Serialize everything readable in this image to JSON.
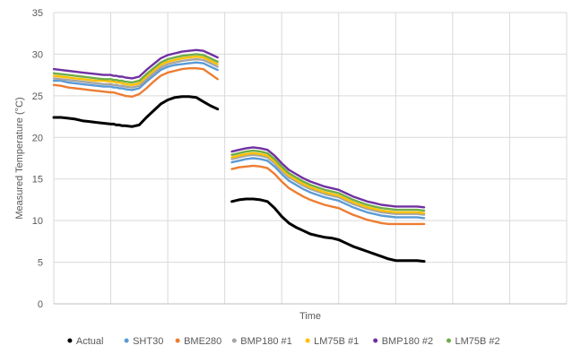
{
  "chart_data": {
    "type": "line",
    "title": "",
    "xlabel": "Time",
    "ylabel": "Measured Temperature (°C)",
    "ylim": [
      0,
      35
    ],
    "yticks": [
      0,
      5,
      10,
      15,
      20,
      25,
      30,
      35
    ],
    "grid": "vertical and horizontal",
    "legend_position": "bottom",
    "x": [
      0,
      5,
      10,
      15,
      20,
      25,
      30,
      35,
      40,
      42,
      44,
      46,
      48,
      50,
      55,
      60,
      65,
      70,
      75,
      80,
      85,
      90,
      95,
      100,
      105,
      110,
      115,
      120,
      125,
      130,
      135,
      140,
      145,
      150,
      155,
      160,
      165,
      170,
      175,
      180,
      185,
      190,
      195,
      200,
      205,
      210,
      215,
      220,
      225,
      230,
      235,
      240,
      245,
      250,
      255,
      260,
      265,
      270,
      275,
      280,
      285,
      290,
      295,
      300,
      305,
      310,
      315,
      320,
      325,
      330,
      335,
      340,
      345,
      350,
      355,
      360
    ],
    "series": [
      {
        "name": "Actual",
        "color": "#000000",
        "values": [
          22.4,
          22.4,
          22.3,
          22.2,
          22.0,
          21.9,
          21.8,
          21.7,
          21.6,
          21.6,
          21.5,
          21.5,
          21.4,
          21.4,
          21.3,
          21.5,
          22.4,
          23.2,
          24.0,
          24.5,
          24.8,
          24.9,
          24.9,
          24.8,
          24.3,
          23.8,
          23.4,
          null,
          12.3,
          12.5,
          12.6,
          12.6,
          12.5,
          12.3,
          11.5,
          10.5,
          9.7,
          9.2,
          8.8,
          8.4,
          8.2,
          8.0,
          7.9,
          7.7,
          7.3,
          6.9,
          6.6,
          6.3,
          6.0,
          5.7,
          5.4,
          5.2,
          5.2,
          5.2,
          5.2,
          5.1,
          null,
          null,
          null,
          null,
          null,
          null,
          null,
          null,
          null,
          null,
          null,
          null,
          null,
          null,
          null,
          null,
          null,
          null,
          null,
          null
        ]
      },
      {
        "name": "SHT30",
        "color": "#5B9BD5",
        "values": [
          26.8,
          26.8,
          26.6,
          26.5,
          26.4,
          26.3,
          26.2,
          26.1,
          26.1,
          26.0,
          26.0,
          25.9,
          25.9,
          25.8,
          25.7,
          25.9,
          26.7,
          27.4,
          28.1,
          28.5,
          28.7,
          28.8,
          28.9,
          29.0,
          28.9,
          28.5,
          28.1,
          null,
          17.0,
          17.2,
          17.4,
          17.5,
          17.4,
          17.2,
          16.5,
          15.6,
          14.8,
          14.3,
          13.8,
          13.4,
          13.1,
          12.8,
          12.6,
          12.4,
          12.0,
          11.6,
          11.3,
          11.0,
          10.8,
          10.6,
          10.5,
          10.4,
          10.4,
          10.4,
          10.4,
          10.3,
          null,
          null,
          null,
          null,
          null,
          null,
          null,
          null,
          null,
          null,
          null,
          null,
          null,
          null,
          null,
          null,
          null,
          null,
          null,
          null
        ]
      },
      {
        "name": "BME280",
        "color": "#ED7D31",
        "values": [
          26.3,
          26.2,
          26.0,
          25.9,
          25.8,
          25.7,
          25.6,
          25.5,
          25.4,
          25.4,
          25.3,
          25.2,
          25.1,
          25.0,
          24.9,
          25.2,
          25.9,
          26.7,
          27.4,
          27.8,
          28.0,
          28.2,
          28.3,
          28.3,
          28.2,
          27.6,
          27.0,
          null,
          16.2,
          16.4,
          16.5,
          16.6,
          16.5,
          16.3,
          15.6,
          14.7,
          13.9,
          13.4,
          12.9,
          12.5,
          12.2,
          11.9,
          11.7,
          11.5,
          11.1,
          10.7,
          10.4,
          10.1,
          9.9,
          9.7,
          9.6,
          9.6,
          9.6,
          9.6,
          9.6,
          9.6,
          null,
          null,
          null,
          null,
          null,
          null,
          null,
          null,
          null,
          null,
          null,
          null,
          null,
          null,
          null,
          null,
          null,
          null,
          null,
          null
        ]
      },
      {
        "name": "BMP180 #1",
        "color": "#A5A5A5",
        "values": [
          27.1,
          27.0,
          26.9,
          26.8,
          26.7,
          26.6,
          26.5,
          26.4,
          26.4,
          26.3,
          26.3,
          26.2,
          26.2,
          26.1,
          26.0,
          26.2,
          27.0,
          27.7,
          28.4,
          28.8,
          29.0,
          29.2,
          29.3,
          29.4,
          29.3,
          28.9,
          28.5,
          null,
          17.4,
          17.6,
          17.8,
          17.9,
          17.8,
          17.6,
          16.9,
          16.0,
          15.2,
          14.7,
          14.2,
          13.8,
          13.5,
          13.2,
          13.0,
          12.8,
          12.4,
          12.0,
          11.7,
          11.4,
          11.2,
          11.0,
          10.9,
          10.8,
          10.8,
          10.8,
          10.8,
          10.7,
          null,
          null,
          null,
          null,
          null,
          null,
          null,
          null,
          null,
          null,
          null,
          null,
          null,
          null,
          null,
          null,
          null,
          null,
          null,
          null
        ]
      },
      {
        "name": "LM75B #1",
        "color": "#FFC000",
        "values": [
          27.4,
          27.3,
          27.2,
          27.1,
          27.0,
          26.9,
          26.8,
          26.8,
          26.7,
          26.7,
          26.6,
          26.6,
          26.5,
          26.4,
          26.3,
          26.5,
          27.3,
          28.0,
          28.7,
          29.1,
          29.3,
          29.5,
          29.6,
          29.7,
          29.6,
          29.2,
          28.8,
          null,
          17.6,
          17.8,
          18.0,
          18.1,
          18.0,
          17.8,
          17.1,
          16.2,
          15.4,
          14.9,
          14.4,
          14.0,
          13.7,
          13.4,
          13.2,
          13.0,
          12.6,
          12.2,
          11.9,
          11.6,
          11.4,
          11.2,
          11.1,
          11.0,
          11.0,
          11.0,
          11.0,
          10.9,
          null,
          null,
          null,
          null,
          null,
          null,
          null,
          null,
          null,
          null,
          null,
          null,
          null,
          null,
          null,
          null,
          null,
          null,
          null,
          null
        ]
      },
      {
        "name": "BMP180 #2",
        "color": "#7030A0",
        "values": [
          28.2,
          28.1,
          28.0,
          27.9,
          27.8,
          27.7,
          27.6,
          27.5,
          27.5,
          27.4,
          27.4,
          27.3,
          27.3,
          27.2,
          27.1,
          27.3,
          28.1,
          28.8,
          29.5,
          29.9,
          30.1,
          30.3,
          30.4,
          30.5,
          30.4,
          30.0,
          29.6,
          null,
          18.3,
          18.5,
          18.7,
          18.8,
          18.7,
          18.5,
          17.8,
          16.9,
          16.1,
          15.6,
          15.1,
          14.7,
          14.4,
          14.1,
          13.9,
          13.7,
          13.3,
          12.9,
          12.6,
          12.3,
          12.1,
          11.9,
          11.8,
          11.7,
          11.7,
          11.7,
          11.7,
          11.6,
          null,
          null,
          null,
          null,
          null,
          null,
          null,
          null,
          null,
          null,
          null,
          null,
          null,
          null,
          null,
          null,
          null,
          null,
          null,
          null
        ]
      },
      {
        "name": "LM75B #2",
        "color": "#70AD47",
        "values": [
          27.7,
          27.6,
          27.5,
          27.4,
          27.3,
          27.2,
          27.1,
          27.0,
          27.0,
          26.9,
          26.9,
          26.8,
          26.8,
          26.7,
          26.6,
          26.8,
          27.6,
          28.3,
          29.0,
          29.4,
          29.6,
          29.8,
          29.9,
          30.0,
          29.9,
          29.5,
          29.1,
          null,
          17.9,
          18.1,
          18.3,
          18.4,
          18.3,
          18.1,
          17.4,
          16.5,
          15.7,
          15.2,
          14.7,
          14.3,
          14.0,
          13.7,
          13.5,
          13.3,
          12.9,
          12.5,
          12.2,
          11.9,
          11.7,
          11.5,
          11.4,
          11.3,
          11.3,
          11.3,
          11.3,
          11.2,
          null,
          null,
          null,
          null,
          null,
          null,
          null,
          null,
          null,
          null,
          null,
          null,
          null,
          null,
          null,
          null,
          null,
          null,
          null,
          null
        ]
      }
    ]
  }
}
